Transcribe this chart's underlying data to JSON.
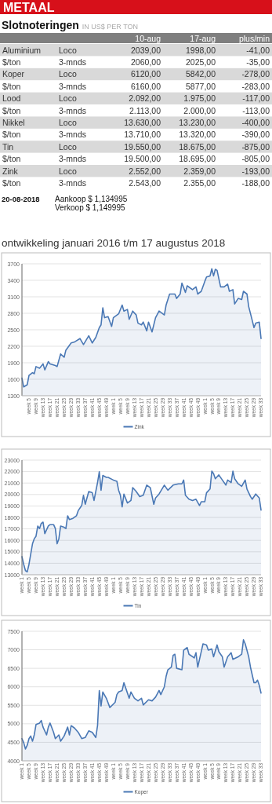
{
  "chart_data": [
    {
      "type": "other",
      "title": "Slotnoteringen",
      "subtitle": "IN US$ PER TON",
      "annotations": [
        "METAAL",
        "10-aug",
        "17-aug",
        "plus/min",
        "Aluminium",
        "Loco",
        "2039,00",
        "1998,00",
        "-41,00",
        "$/ton",
        "3-mnds",
        "2060,00",
        "2025,00",
        "-35,00",
        "Koper",
        "Loco",
        "6120,00",
        "5842,00",
        "-278,00",
        "$/ton",
        "3-mnds",
        "6160,00",
        "5877,00",
        "-283,00",
        "Lood",
        "Loco",
        "2.092,00",
        "1.975,00",
        "-117,00",
        "$/ton",
        "3-mnds",
        "2.113,00",
        "2.000,00",
        "-113,00",
        "Nikkel",
        "Loco",
        "13.630,00",
        "13.230,00",
        "-400,00",
        "$/ton",
        "3-mnds",
        "13.710,00",
        "13.320,00",
        "-390,00",
        "Tin",
        "Loco",
        "19.550,00",
        "18.675,00",
        "-875,00",
        "$/ton",
        "3-mnds",
        "19.500,00",
        "18.695,00",
        "-805,00",
        "Zink",
        "Loco",
        "2.552,00",
        "2.359,00",
        "-193,00",
        "$/ton",
        "3-mnds",
        "2.543,00",
        "2.355,00",
        "-188,00",
        "20-08-2018",
        "Aankoop $ 1,134995",
        "Verkoop $ 1,149995"
      ]
    },
    {
      "type": "area",
      "title": "ontwikkeling januari 2016 t/m 17 augustus 2018",
      "ylim": [
        1300,
        3700
      ],
      "yticks": [
        1300,
        1600,
        1900,
        2200,
        2500,
        2800,
        3100,
        3400,
        3700
      ],
      "grid": "y",
      "legend": "bottom",
      "categories": [
        null,
        null,
        null,
        null,
        "week 5",
        null,
        null,
        null,
        "week 9",
        null,
        null,
        null,
        "week 13",
        null,
        null,
        null,
        "week 17",
        null,
        null,
        null,
        "week 21",
        null,
        null,
        null,
        "week 25",
        null,
        null,
        null,
        "week 29",
        null,
        null,
        null,
        "week 33",
        null,
        null,
        null,
        "week 37",
        null,
        null,
        null,
        "week 41",
        null,
        null,
        null,
        "week 45",
        null,
        null,
        null,
        "week 49",
        null,
        null,
        null,
        "week 1",
        null,
        null,
        null,
        "week 5",
        null,
        null,
        null,
        "week 9",
        null,
        null,
        null,
        "week 13",
        null,
        null,
        null,
        "week 17",
        null,
        null,
        null,
        "week 21",
        null,
        null,
        null,
        "week 25",
        null,
        null,
        null,
        "week 29",
        null,
        null,
        null,
        "week 33",
        null,
        null,
        null,
        "week 37",
        null,
        null,
        null,
        "week 41",
        null,
        null,
        null,
        "week 45",
        null,
        null,
        null,
        "week 49",
        null,
        null,
        null,
        "week 1",
        null,
        null,
        null,
        "week 5",
        null,
        null,
        null,
        "week 9",
        null,
        null,
        null,
        "week 13",
        null,
        null,
        null,
        "week 17",
        null,
        null,
        null,
        "week 21",
        null,
        null,
        null,
        "week 25",
        null,
        null,
        null,
        "week 29",
        null,
        null,
        null,
        "week 33"
      ],
      "series": [
        {
          "name": "Zink",
          "color": "#4a78b5",
          "values": [
            1620,
            1460,
            null,
            1500,
            1670,
            null,
            1720,
            1700,
            1830,
            null,
            1800,
            null,
            1880,
            1770,
            null,
            1920,
            1880,
            null,
            null,
            1850,
            1830,
            null,
            2060,
            null,
            2000,
            2130,
            null,
            null,
            2260,
            null,
            2280,
            null,
            null,
            2340,
            null,
            2230,
            null,
            null,
            2390,
            null,
            2260,
            null,
            2360,
            null,
            2540,
            2590,
            2900,
            2720,
            null,
            2740,
            null,
            2560,
            2720,
            null,
            null,
            2790,
            null,
            2950,
            2840,
            null,
            2870,
            2690,
            null,
            2840,
            null,
            2770,
            2620,
            null,
            2590,
            2640,
            null,
            2480,
            2640,
            null,
            2460,
            null,
            2720,
            null,
            2840,
            null,
            null,
            2770,
            2950,
            null,
            3150,
            null,
            null,
            3150,
            3070,
            null,
            3150,
            3350,
            null,
            3180,
            3300,
            null,
            null,
            3230,
            null,
            3280,
            3150,
            null,
            3200,
            null,
            3380,
            3460,
            null,
            3480,
            3610,
            3480,
            3600,
            3580,
            null,
            3280,
            null,
            3280,
            null,
            3330,
            3200,
            null,
            3230,
            2970,
            null,
            3070,
            null,
            3050,
            3200,
            null,
            3150,
            2920,
            null,
            2670,
            2540,
            2620,
            null,
            2640,
            2340
          ]
        }
      ]
    },
    {
      "type": "area",
      "ylim": [
        13000,
        23000
      ],
      "yticks": [
        13000,
        14000,
        15000,
        16000,
        17000,
        18000,
        19000,
        20000,
        21000,
        22000,
        23000
      ],
      "grid": "y",
      "legend": "bottom",
      "categories": [
        "week 1",
        null,
        null,
        null,
        "week 5",
        null,
        null,
        null,
        "week 9",
        null,
        null,
        null,
        "week 13",
        null,
        null,
        null,
        "week 17",
        null,
        null,
        null,
        "week 21",
        null,
        null,
        null,
        "week 25",
        null,
        null,
        null,
        "week 29",
        null,
        null,
        null,
        "week 33",
        null,
        null,
        null,
        "week 37",
        null,
        null,
        null,
        "week 41",
        null,
        null,
        null,
        "week 45",
        null,
        null,
        null,
        "week 49",
        null,
        null,
        null,
        "week 1",
        null,
        null,
        null,
        "week 5",
        null,
        null,
        null,
        "week 9",
        null,
        null,
        null,
        "week 13",
        null,
        null,
        null,
        "week 17",
        null,
        null,
        null,
        "week 21",
        null,
        null,
        null,
        "week 25",
        null,
        null,
        null,
        "week 29",
        null,
        null,
        null,
        "week 33",
        null,
        null,
        null,
        "week 37",
        null,
        null,
        null,
        "week 41",
        null,
        null,
        null,
        "week 45",
        null,
        null,
        null,
        "week 49",
        null,
        null,
        null,
        "week 1",
        null,
        null,
        null,
        "week 5",
        null,
        null,
        null,
        "week 9",
        null,
        null,
        null,
        "week 13",
        null,
        null,
        null,
        "week 17",
        null,
        null,
        null,
        "week 21",
        null,
        null,
        null,
        "week 25",
        null,
        null,
        null,
        "week 29",
        null,
        null,
        null,
        "week 33"
      ],
      "series": [
        {
          "name": "Tin",
          "color": "#4a78b5",
          "values": [
            14580,
            13910,
            13360,
            13250,
            13910,
            14800,
            15700,
            16140,
            16360,
            17250,
            17030,
            17480,
            17590,
            16590,
            null,
            17250,
            17370,
            null,
            17370,
            17030,
            15700,
            16140,
            17250,
            null,
            17140,
            17030,
            18140,
            17810,
            null,
            17920,
            null,
            18140,
            18590,
            null,
            19040,
            19930,
            19150,
            null,
            20260,
            null,
            20150,
            19480,
            20260,
            21040,
            21980,
            20370,
            21660,
            null,
            21490,
            21490,
            null,
            null,
            21260,
            null,
            21150,
            20370,
            19930,
            18920,
            20040,
            null,
            19260,
            null,
            19480,
            20600,
            null,
            20260,
            null,
            19820,
            null,
            19930,
            null,
            20820,
            null,
            20600,
            null,
            19150,
            19700,
            null,
            20040,
            null,
            null,
            20820,
            null,
            20370,
            null,
            null,
            20820,
            null,
            null,
            20930,
            null,
            20930,
            21260,
            19930,
            null,
            19590,
            null,
            19480,
            null,
            19590,
            null,
            19040,
            19370,
            null,
            19370,
            20150,
            null,
            20480,
            22040,
            21820,
            21370,
            null,
            21710,
            null,
            21260,
            null,
            20820,
            21260,
            null,
            21040,
            22040,
            21370,
            null,
            20930,
            null,
            20710,
            null,
            21260,
            20480,
            null,
            19820,
            19590,
            null,
            20040,
            null,
            19700,
            18640
          ]
        }
      ]
    },
    {
      "type": "area",
      "ylim": [
        4000,
        7500
      ],
      "yticks": [
        4000,
        4500,
        5000,
        5500,
        6000,
        6500,
        7000,
        7500
      ],
      "grid": "y",
      "legend": "bottom",
      "categories": [
        "week 1",
        null,
        null,
        null,
        "week 5",
        null,
        null,
        null,
        "week 9",
        null,
        null,
        null,
        "week 13",
        null,
        null,
        null,
        "week 17",
        null,
        null,
        null,
        "week 21",
        null,
        null,
        null,
        "week 25",
        null,
        null,
        null,
        "week 29",
        null,
        null,
        null,
        "week 33",
        null,
        null,
        null,
        "week 37",
        null,
        null,
        null,
        "week 41",
        null,
        null,
        null,
        "week 45",
        null,
        null,
        null,
        "week 49",
        null,
        null,
        null,
        "week 1",
        null,
        null,
        null,
        "week 5",
        null,
        null,
        null,
        "week 9",
        null,
        null,
        null,
        "week 13",
        null,
        null,
        null,
        "week 17",
        null,
        null,
        null,
        "week 21",
        null,
        null,
        null,
        "week 25",
        null,
        null,
        null,
        "week 29",
        null,
        null,
        null,
        "week 33",
        null,
        null,
        null,
        "week 37",
        null,
        null,
        null,
        "week 41",
        null,
        null,
        null,
        "week 45",
        null,
        null,
        null,
        "week 49",
        null,
        null,
        null,
        "week 1",
        null,
        null,
        null,
        "week 5",
        null,
        null,
        null,
        "week 9",
        null,
        null,
        null,
        "week 13",
        null,
        null,
        null,
        "week 17",
        null,
        null,
        null,
        "week 21",
        null,
        null,
        null,
        "week 25",
        null,
        null,
        null,
        "week 29",
        null,
        null,
        null,
        "week 33"
      ],
      "series": [
        {
          "name": "Koper",
          "color": "#4a78b5",
          "values": [
            4600,
            4490,
            4320,
            4420,
            4600,
            4670,
            4530,
            4700,
            4980,
            null,
            5020,
            5090,
            4910,
            null,
            4700,
            4910,
            5020,
            null,
            4770,
            4600,
            null,
            4700,
            4530,
            null,
            4670,
            null,
            4910,
            4700,
            4950,
            null,
            4880,
            null,
            4770,
            null,
            4600,
            null,
            4630,
            null,
            4810,
            null,
            4770,
            null,
            4630,
            4950,
            5900,
            5480,
            5860,
            null,
            5690,
            null,
            5440,
            null,
            null,
            5580,
            5790,
            5860,
            null,
            5900,
            6110,
            5970,
            null,
            5690,
            5860,
            null,
            5690,
            null,
            5620,
            null,
            5690,
            5510,
            null,
            null,
            5650,
            null,
            5620,
            null,
            5720,
            null,
            5900,
            5790,
            null,
            6000,
            6280,
            6460,
            null,
            6530,
            6850,
            6880,
            6500,
            null,
            null,
            6460,
            6990,
            null,
            7060,
            6880,
            null,
            null,
            6780,
            6920,
            6530,
            null,
            6950,
            7160,
            null,
            7130,
            6990,
            null,
            7020,
            6810,
            null,
            7130,
            6950,
            null,
            6810,
            6530,
            null,
            6810,
            null,
            6920,
            6740,
            null,
            null,
            6810,
            null,
            6880,
            7270,
            7160,
            null,
            6810,
            6530,
            null,
            6110,
            6110,
            6180,
            6040,
            5830
          ]
        }
      ]
    }
  ]
}
